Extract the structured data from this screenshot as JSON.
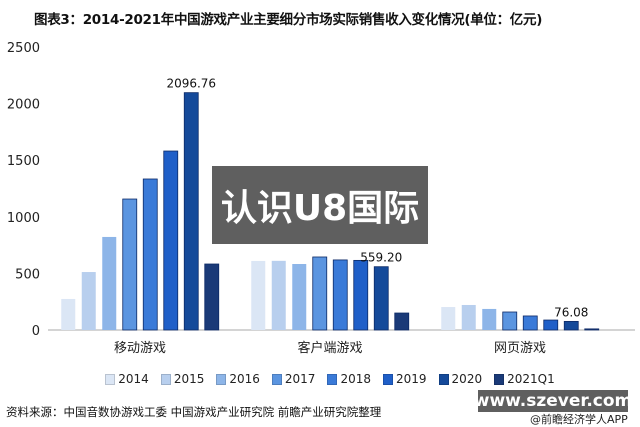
{
  "chart_data": {
    "type": "bar",
    "title": "图表3：2014-2021年中国游戏产业主要细分市场实际销售收入变化情况(单位：亿元)",
    "categories": [
      "移动游戏",
      "客户端游戏",
      "网页游戏"
    ],
    "ylim": [
      0,
      2500
    ],
    "yticks": [
      0,
      500,
      1000,
      1500,
      2000,
      2500
    ],
    "grid": false,
    "legend_position": "bottom",
    "series": [
      {
        "name": "2014",
        "color": "#dbe6f5",
        "values": [
          274,
          610,
          203
        ]
      },
      {
        "name": "2015",
        "color": "#b8cfee",
        "values": [
          512,
          611,
          221
        ]
      },
      {
        "name": "2016",
        "color": "#8db5e8",
        "values": [
          822,
          583,
          186
        ]
      },
      {
        "name": "2017",
        "color": "#5b95e0",
        "values": [
          1157,
          645,
          159
        ]
      },
      {
        "name": "2018",
        "color": "#3a7ad8",
        "values": [
          1334,
          619,
          124
        ]
      },
      {
        "name": "2019",
        "color": "#1f5fc8",
        "values": [
          1581,
          615,
          88
        ]
      },
      {
        "name": "2020",
        "color": "#154a9a",
        "values": [
          2096.76,
          559.2,
          76.08
        ]
      },
      {
        "name": "2021Q1",
        "color": "#1a3a78",
        "values": [
          583,
          150,
          10
        ]
      }
    ],
    "data_labels": [
      "2096.76",
      "559.20",
      "76.08"
    ]
  },
  "source": "资料来源：中国音数协游戏工委 中国游戏产业研究院 前瞻产业研究院整理",
  "overlay_text": "认识U8国际",
  "watermark_url": "www.szever.com",
  "app_credit": "@前瞻经济学人APP"
}
